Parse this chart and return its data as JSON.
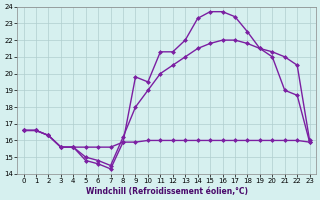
{
  "xlabel": "Windchill (Refroidissement éolien,°C)",
  "bg_color": "#d6f0ef",
  "grid_color": "#b0cece",
  "line_color": "#7b1fa2",
  "xlim": [
    0,
    23
  ],
  "ylim": [
    14,
    24
  ],
  "xticks": [
    0,
    1,
    2,
    3,
    4,
    5,
    6,
    7,
    8,
    9,
    10,
    11,
    12,
    13,
    14,
    15,
    16,
    17,
    18,
    19,
    20,
    21,
    22,
    23
  ],
  "yticks": [
    14,
    15,
    16,
    17,
    18,
    19,
    20,
    21,
    22,
    23,
    24
  ],
  "curve1_x": [
    0,
    1,
    2,
    3,
    4,
    5,
    6,
    7,
    8,
    9,
    10,
    11,
    12,
    13,
    14,
    15,
    16,
    17,
    18,
    19,
    20,
    21,
    22,
    23
  ],
  "curve1_y": [
    16.6,
    16.6,
    16.3,
    15.6,
    15.6,
    14.8,
    14.6,
    14.3,
    15.9,
    19.8,
    19.5,
    21.3,
    21.3,
    22.0,
    23.3,
    23.7,
    23.7,
    23.4,
    22.5,
    21.5,
    21.0,
    19.0,
    18.7,
    15.9
  ],
  "curve2_x": [
    0,
    1,
    2,
    3,
    4,
    5,
    6,
    7,
    8,
    9,
    10,
    11,
    12,
    13,
    14,
    15,
    16,
    17,
    18,
    19,
    20,
    21,
    22,
    23
  ],
  "curve2_y": [
    16.6,
    16.6,
    16.3,
    15.6,
    15.6,
    15.6,
    15.6,
    15.6,
    15.9,
    15.9,
    16.0,
    16.0,
    16.0,
    16.0,
    16.0,
    16.0,
    16.0,
    16.0,
    16.0,
    16.0,
    16.0,
    16.0,
    16.0,
    15.9
  ],
  "curve3_x": [
    0,
    1,
    2,
    3,
    4,
    5,
    6,
    7,
    8,
    9,
    10,
    11,
    12,
    13,
    14,
    15,
    16,
    17,
    18,
    19,
    20,
    21,
    22,
    23
  ],
  "curve3_y": [
    16.6,
    16.6,
    16.3,
    15.6,
    15.6,
    15.0,
    14.8,
    14.5,
    16.2,
    18.0,
    19.0,
    20.0,
    20.5,
    21.0,
    21.5,
    21.8,
    22.0,
    22.0,
    21.8,
    21.5,
    21.3,
    21.0,
    20.5,
    16.0
  ]
}
